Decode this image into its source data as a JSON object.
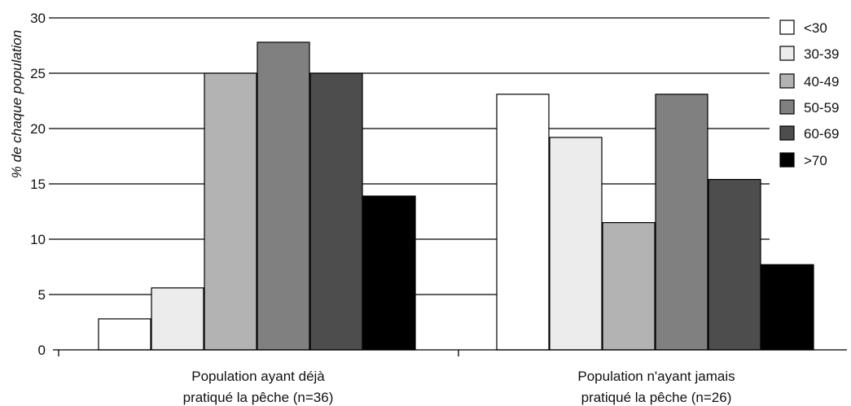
{
  "chart_data": {
    "type": "bar",
    "ylabel": "% de chaque population",
    "xlabel": "",
    "ylim": [
      0,
      30
    ],
    "yticks": [
      "0",
      "5",
      "10",
      "15",
      "20",
      "25",
      "30"
    ],
    "grid": "horizontal",
    "legend_position": "right",
    "categories": [
      [
        "Population ayant déjà",
        "pratiqué la pêche (n=36)"
      ],
      [
        "Population n'ayant jamais",
        "pratiqué la pêche (n=26)"
      ]
    ],
    "series": [
      {
        "name": "<30",
        "color": "#ffffff",
        "values": [
          2.8,
          23.1
        ]
      },
      {
        "name": "30-39",
        "color": "#ececec",
        "values": [
          5.6,
          19.2
        ]
      },
      {
        "name": "40-49",
        "color": "#b3b3b3",
        "values": [
          25.0,
          11.5
        ]
      },
      {
        "name": "50-59",
        "color": "#808080",
        "values": [
          27.8,
          23.1
        ]
      },
      {
        "name": "60-69",
        "color": "#4d4d4d",
        "values": [
          25.0,
          15.4
        ]
      },
      {
        "name": ">70",
        "color": "#000000",
        "values": [
          13.9,
          7.7
        ]
      }
    ]
  }
}
